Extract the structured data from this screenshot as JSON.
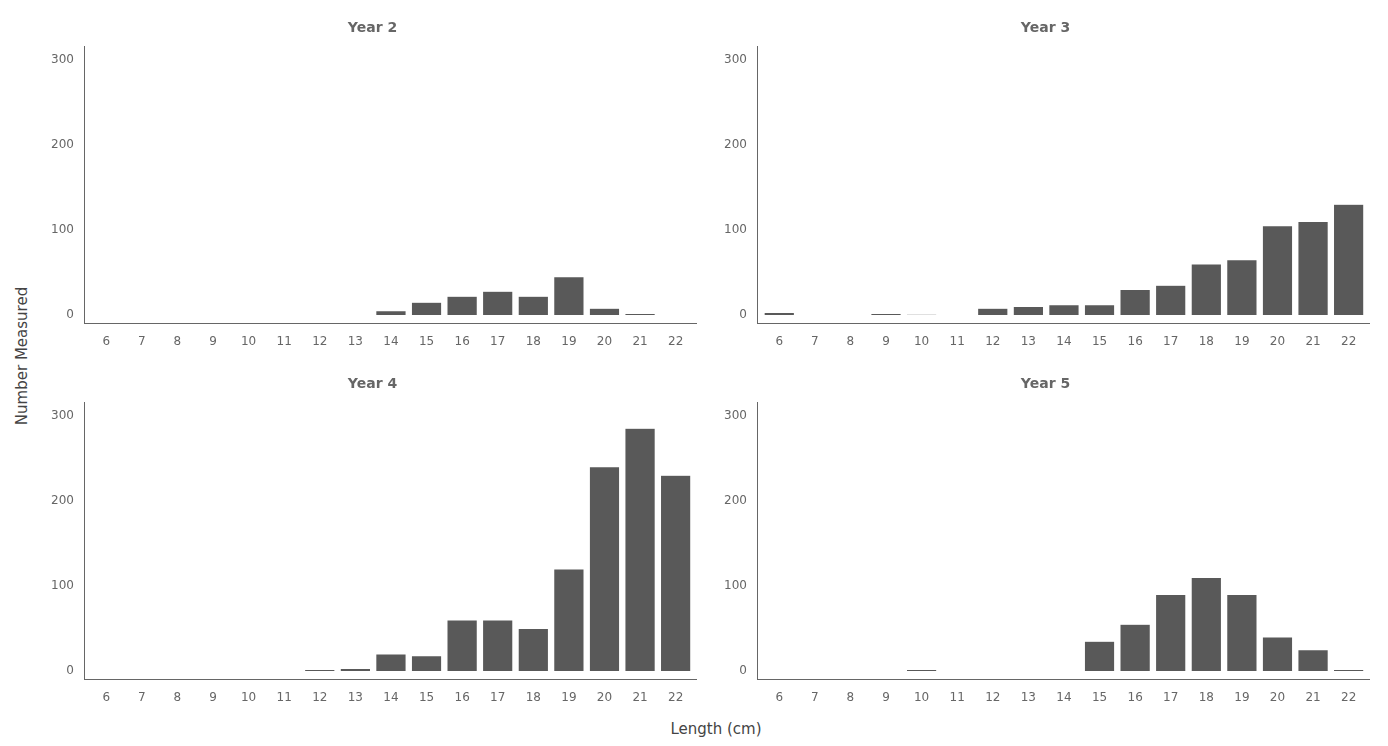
{
  "xlabel": "Length (cm)",
  "ylabel": "Number Measured",
  "chart_data": [
    {
      "type": "bar",
      "title": "Year 2",
      "color": "#595959",
      "grid": false,
      "x": [
        6,
        7,
        8,
        9,
        10,
        11,
        12,
        13,
        14,
        15,
        16,
        17,
        18,
        19,
        20,
        21,
        22
      ],
      "values": [
        0,
        0,
        0,
        0,
        0,
        0,
        0,
        0,
        5,
        15,
        22,
        28,
        22,
        45,
        8,
        2,
        0
      ],
      "xlim": [
        5.4,
        22.6
      ],
      "xticks": [
        6,
        7,
        8,
        9,
        10,
        11,
        12,
        13,
        14,
        15,
        16,
        17,
        18,
        19,
        20,
        21,
        22
      ],
      "ylim": [
        -10,
        315
      ],
      "yticks": [
        0,
        100,
        200,
        300
      ]
    },
    {
      "type": "bar",
      "title": "Year 3",
      "color": "#595959",
      "grid": false,
      "x": [
        6,
        7,
        8,
        9,
        10,
        11,
        12,
        13,
        14,
        15,
        16,
        17,
        18,
        19,
        20,
        21,
        22
      ],
      "values": [
        3,
        0,
        0,
        2,
        1,
        0,
        8,
        10,
        12,
        12,
        30,
        35,
        60,
        65,
        105,
        110,
        130
      ],
      "xlim": [
        5.4,
        22.6
      ],
      "xticks": [
        6,
        7,
        8,
        9,
        10,
        11,
        12,
        13,
        14,
        15,
        16,
        17,
        18,
        19,
        20,
        21,
        22
      ],
      "ylim": [
        -10,
        315
      ],
      "yticks": [
        0,
        100,
        200,
        300
      ]
    },
    {
      "type": "bar",
      "title": "Year 4",
      "color": "#595959",
      "grid": false,
      "x": [
        6,
        7,
        8,
        9,
        10,
        11,
        12,
        13,
        14,
        15,
        16,
        17,
        18,
        19,
        20,
        21,
        22
      ],
      "values": [
        0,
        0,
        0,
        0,
        0,
        0,
        2,
        3,
        20,
        18,
        60,
        60,
        50,
        120,
        240,
        285,
        230
      ],
      "xlim": [
        5.4,
        22.6
      ],
      "xticks": [
        6,
        7,
        8,
        9,
        10,
        11,
        12,
        13,
        14,
        15,
        16,
        17,
        18,
        19,
        20,
        21,
        22
      ],
      "ylim": [
        -10,
        315
      ],
      "yticks": [
        0,
        100,
        200,
        300
      ]
    },
    {
      "type": "bar",
      "title": "Year 5",
      "color": "#595959",
      "grid": false,
      "x": [
        6,
        7,
        8,
        9,
        10,
        11,
        12,
        13,
        14,
        15,
        16,
        17,
        18,
        19,
        20,
        21,
        22
      ],
      "values": [
        0,
        0,
        0,
        0,
        2,
        0,
        0,
        0,
        0,
        35,
        55,
        90,
        110,
        90,
        40,
        25,
        2
      ],
      "xlim": [
        5.4,
        22.6
      ],
      "xticks": [
        6,
        7,
        8,
        9,
        10,
        11,
        12,
        13,
        14,
        15,
        16,
        17,
        18,
        19,
        20,
        21,
        22
      ],
      "ylim": [
        -10,
        315
      ],
      "yticks": [
        0,
        100,
        200,
        300
      ]
    }
  ]
}
